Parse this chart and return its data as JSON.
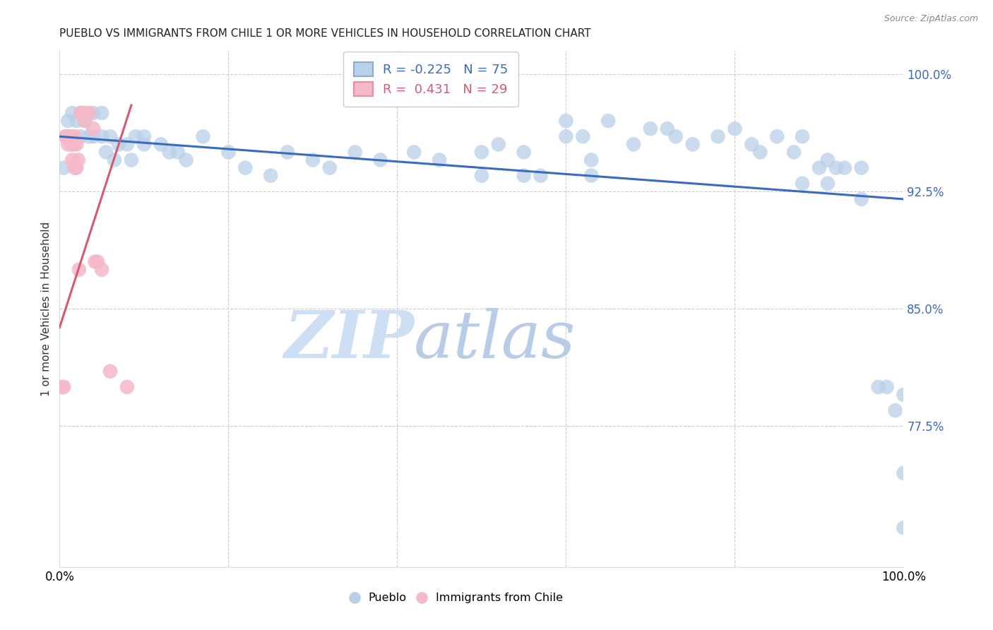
{
  "title": "PUEBLO VS IMMIGRANTS FROM CHILE 1 OR MORE VEHICLES IN HOUSEHOLD CORRELATION CHART",
  "source": "Source: ZipAtlas.com",
  "ylabel": "1 or more Vehicles in Household",
  "xlim": [
    0.0,
    1.0
  ],
  "ylim": [
    0.685,
    1.015
  ],
  "yticks": [
    0.775,
    0.85,
    0.925,
    1.0
  ],
  "ytick_labels": [
    "77.5%",
    "85.0%",
    "92.5%",
    "100.0%"
  ],
  "legend_blue_r": "-0.225",
  "legend_blue_n": "75",
  "legend_pink_r": "0.431",
  "legend_pink_n": "29",
  "blue_color": "#b8d0e8",
  "pink_color": "#f5b8c8",
  "trend_blue_color": "#3a6bbf",
  "trend_pink_color": "#d45a72",
  "blue_points_x": [
    0.005,
    0.01,
    0.015,
    0.02,
    0.025,
    0.025,
    0.03,
    0.03,
    0.035,
    0.04,
    0.04,
    0.05,
    0.05,
    0.055,
    0.06,
    0.065,
    0.07,
    0.08,
    0.085,
    0.09,
    0.1,
    0.1,
    0.12,
    0.13,
    0.14,
    0.15,
    0.17,
    0.2,
    0.22,
    0.25,
    0.27,
    0.3,
    0.32,
    0.35,
    0.38,
    0.42,
    0.45,
    0.5,
    0.52,
    0.55,
    0.57,
    0.6,
    0.6,
    0.62,
    0.63,
    0.65,
    0.68,
    0.7,
    0.72,
    0.73,
    0.75,
    0.78,
    0.8,
    0.82,
    0.83,
    0.85,
    0.87,
    0.88,
    0.9,
    0.91,
    0.92,
    0.93,
    0.95,
    0.95,
    0.97,
    0.98,
    0.99,
    1.0,
    1.0,
    1.0,
    0.5,
    0.55,
    0.63,
    0.88,
    0.91
  ],
  "blue_points_y": [
    0.94,
    0.97,
    0.975,
    0.97,
    0.975,
    0.96,
    0.975,
    0.97,
    0.96,
    0.975,
    0.96,
    0.975,
    0.96,
    0.95,
    0.96,
    0.945,
    0.955,
    0.955,
    0.945,
    0.96,
    0.96,
    0.955,
    0.955,
    0.95,
    0.95,
    0.945,
    0.96,
    0.95,
    0.94,
    0.935,
    0.95,
    0.945,
    0.94,
    0.95,
    0.945,
    0.95,
    0.945,
    0.95,
    0.955,
    0.95,
    0.935,
    0.97,
    0.96,
    0.96,
    0.945,
    0.97,
    0.955,
    0.965,
    0.965,
    0.96,
    0.955,
    0.96,
    0.965,
    0.955,
    0.95,
    0.96,
    0.95,
    0.96,
    0.94,
    0.945,
    0.94,
    0.94,
    0.94,
    0.92,
    0.8,
    0.8,
    0.785,
    0.795,
    0.745,
    0.71,
    0.935,
    0.935,
    0.935,
    0.93,
    0.93
  ],
  "pink_points_x": [
    0.003,
    0.005,
    0.007,
    0.008,
    0.01,
    0.01,
    0.012,
    0.013,
    0.014,
    0.015,
    0.015,
    0.017,
    0.018,
    0.018,
    0.02,
    0.02,
    0.022,
    0.023,
    0.025,
    0.027,
    0.03,
    0.03,
    0.035,
    0.04,
    0.042,
    0.045,
    0.05,
    0.06,
    0.08
  ],
  "pink_points_y": [
    0.8,
    0.8,
    0.96,
    0.96,
    0.96,
    0.955,
    0.96,
    0.96,
    0.955,
    0.955,
    0.945,
    0.955,
    0.96,
    0.94,
    0.955,
    0.94,
    0.945,
    0.875,
    0.975,
    0.975,
    0.975,
    0.97,
    0.975,
    0.965,
    0.88,
    0.88,
    0.875,
    0.81,
    0.8
  ],
  "blue_trend_x": [
    0.0,
    1.0
  ],
  "blue_trend_y": [
    0.96,
    0.92
  ],
  "pink_trend_x": [
    0.0,
    0.085
  ],
  "pink_trend_y": [
    0.838,
    0.98
  ]
}
